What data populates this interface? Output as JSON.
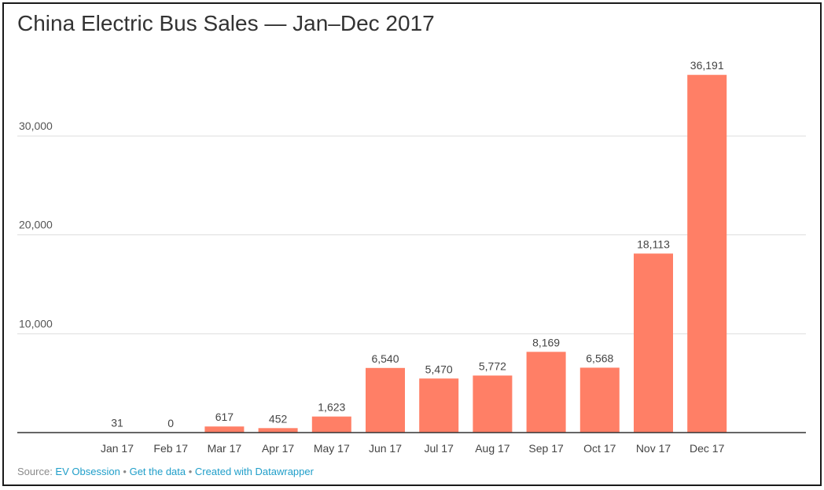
{
  "chart_data": {
    "type": "bar",
    "title": "China Electric Bus Sales — Jan–Dec 2017",
    "categories": [
      "Jan 17",
      "Feb 17",
      "Mar 17",
      "Apr 17",
      "May 17",
      "Jun 17",
      "Jul 17",
      "Aug 17",
      "Sep 17",
      "Oct 17",
      "Nov 17",
      "Dec 17"
    ],
    "values": [
      31,
      0,
      617,
      452,
      1623,
      6540,
      5470,
      5772,
      8169,
      6568,
      18113,
      36191
    ],
    "value_labels": [
      "31",
      "0",
      "617",
      "452",
      "1,623",
      "6,540",
      "5,470",
      "5,772",
      "8,169",
      "6,568",
      "18,113",
      "36,191"
    ],
    "yticks": [
      10000,
      20000,
      30000
    ],
    "ytick_labels": [
      "10,000",
      "20,000",
      "30,000"
    ],
    "ylim": [
      0,
      38000
    ],
    "grid": true,
    "bar_color": "#ff7f66"
  },
  "footer": {
    "source_prefix": "Source: ",
    "source_name": "EV Obsession",
    "separator": " • ",
    "get_data": "Get the data",
    "created_with": "Created with Datawrapper"
  }
}
